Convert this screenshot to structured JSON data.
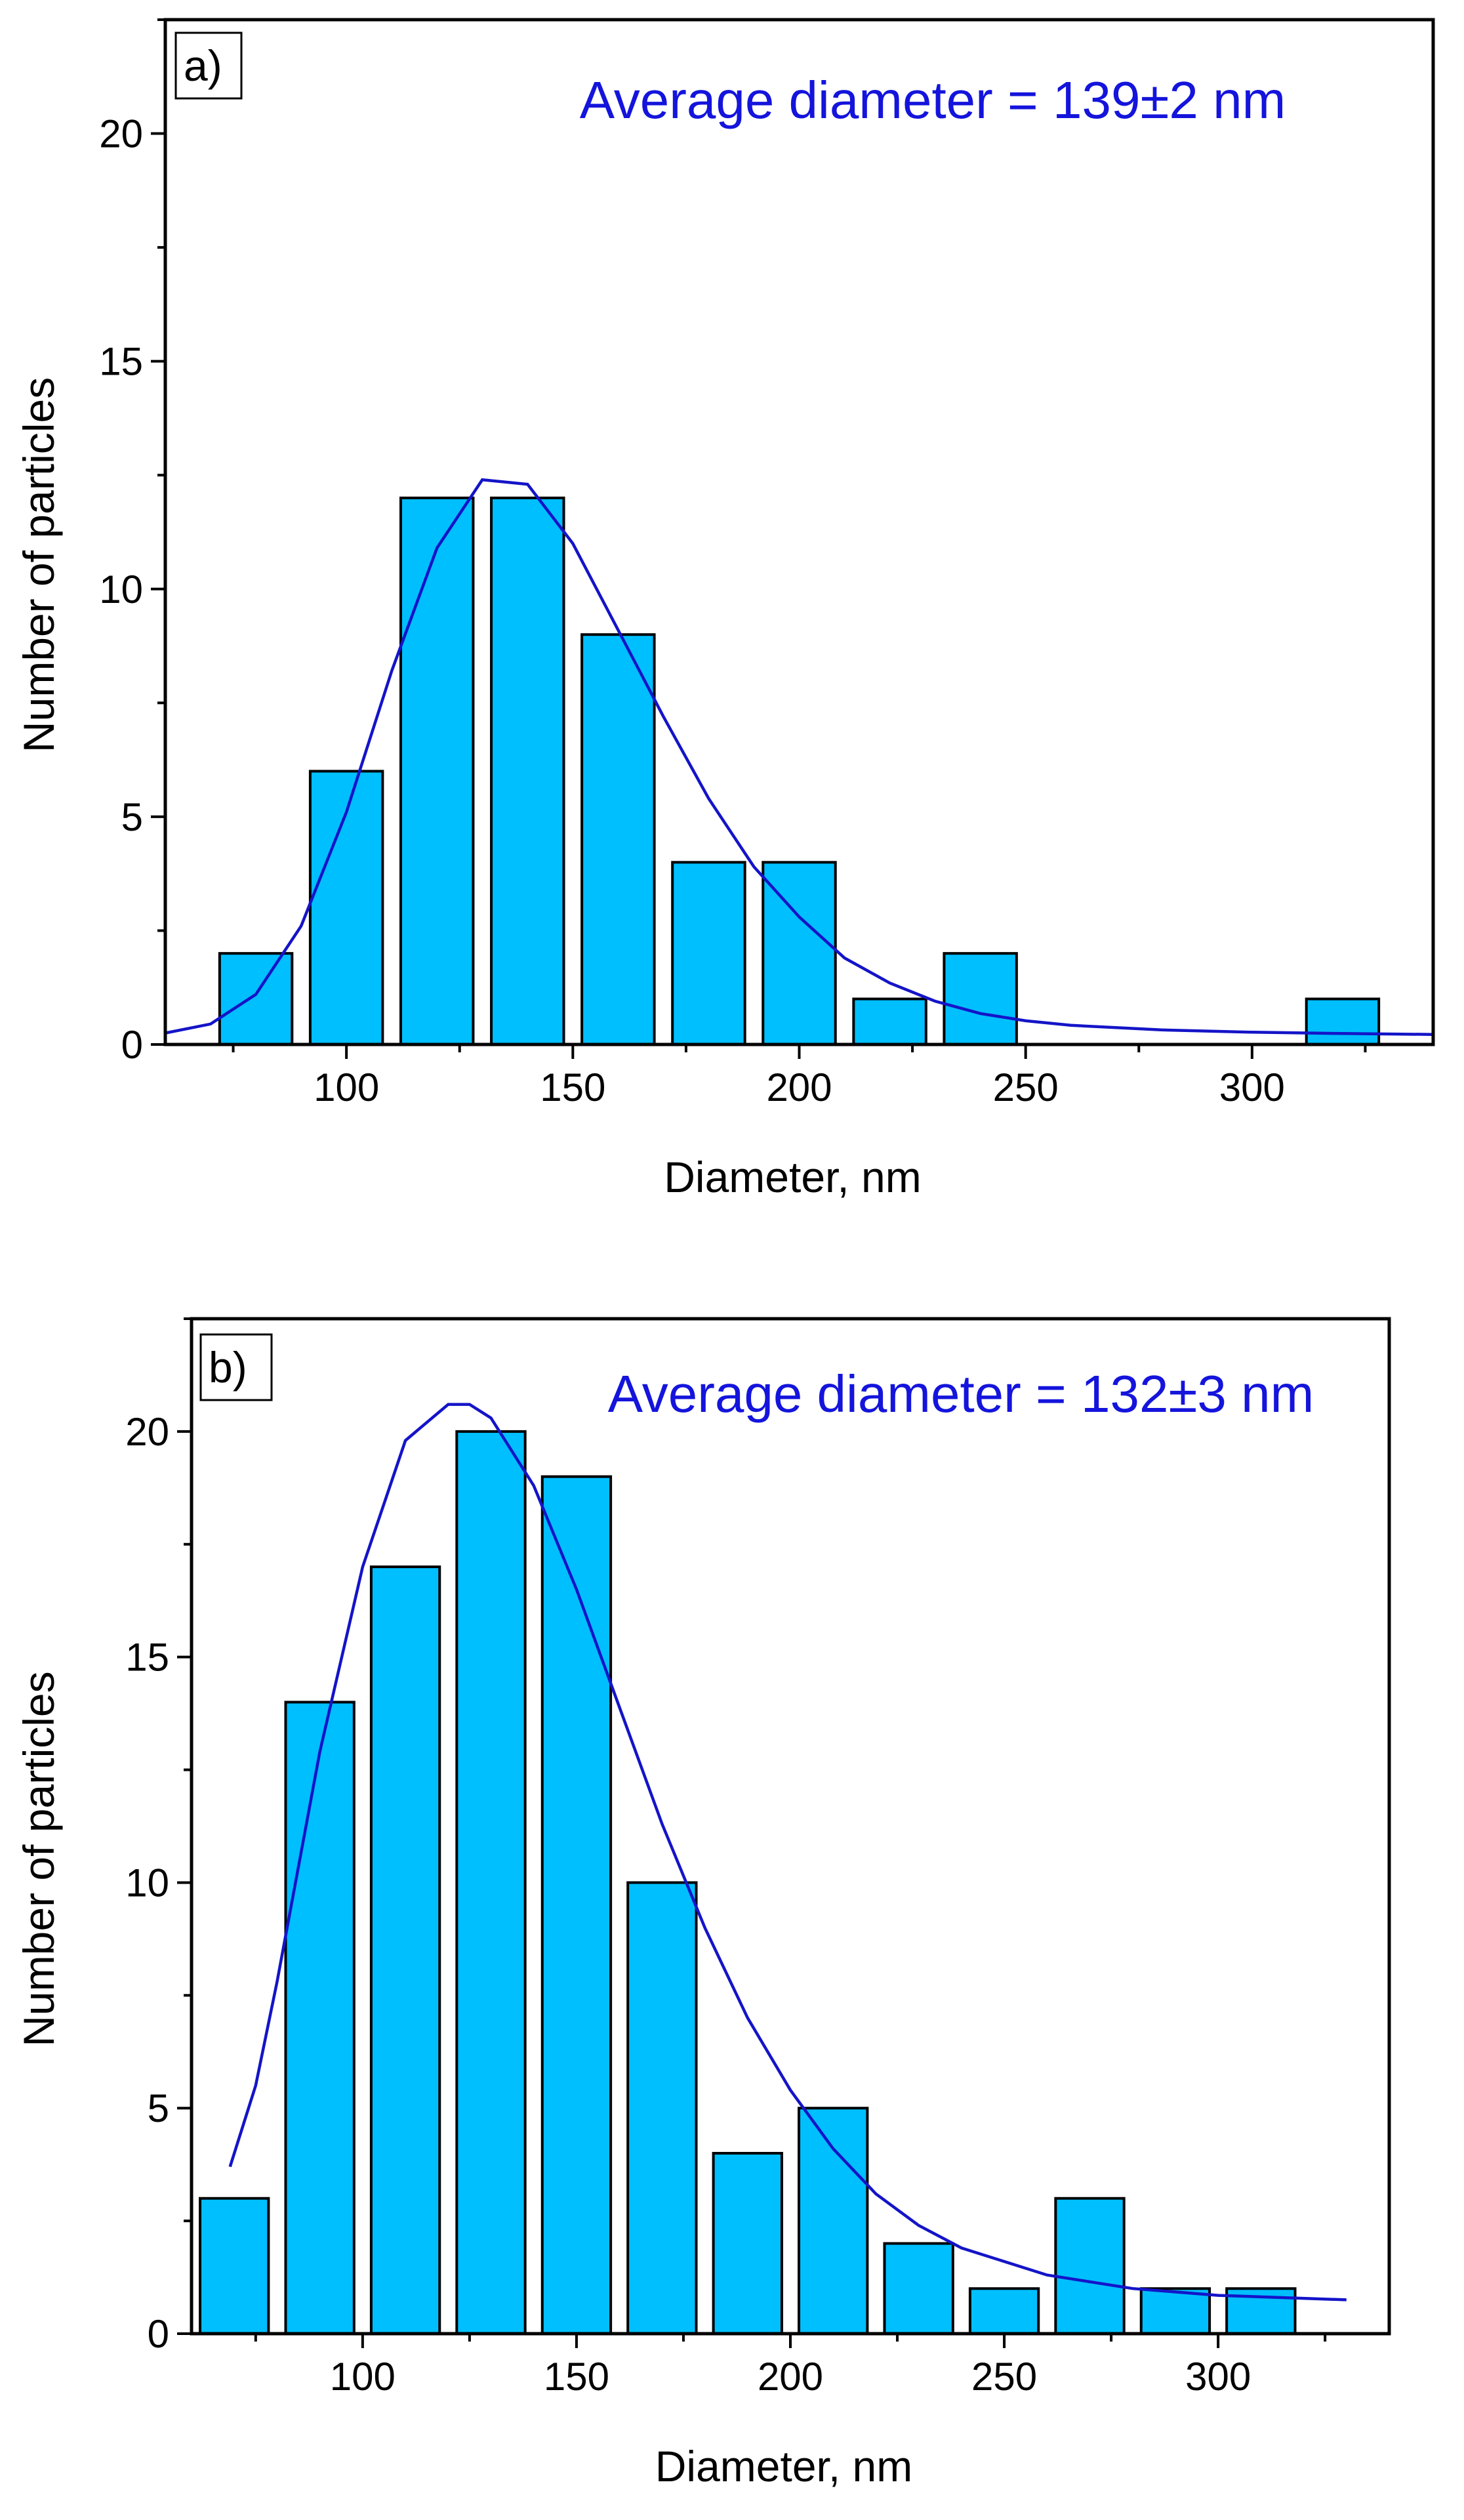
{
  "figure": {
    "panels_count": 2
  },
  "chart_data": [
    {
      "type": "bar",
      "panel_label": "a)",
      "annotation": "Average diameter = 139±2 nm",
      "xlabel": "Diameter, nm",
      "ylabel": "Number of particles",
      "xlim": [
        60,
        340
      ],
      "ylim": [
        0,
        22.5
      ],
      "xticks": [
        100,
        150,
        200,
        250,
        300
      ],
      "yticks": [
        0,
        5,
        10,
        15,
        20
      ],
      "bin_width": 20,
      "bar_fraction": 0.8,
      "bins": [
        {
          "center": 80,
          "count": 2
        },
        {
          "center": 100,
          "count": 6
        },
        {
          "center": 120,
          "count": 12
        },
        {
          "center": 140,
          "count": 12
        },
        {
          "center": 160,
          "count": 9
        },
        {
          "center": 180,
          "count": 4
        },
        {
          "center": 200,
          "count": 4
        },
        {
          "center": 220,
          "count": 1
        },
        {
          "center": 240,
          "count": 2
        },
        {
          "center": 320,
          "count": 1
        }
      ],
      "fit": {
        "type": "lognormal",
        "x": [
          60,
          70,
          80,
          90,
          100,
          110,
          120,
          130,
          140,
          150,
          160,
          170,
          180,
          190,
          200,
          210,
          220,
          230,
          240,
          250,
          260,
          280,
          300,
          320,
          340
        ],
        "y": [
          0.25,
          0.45,
          1.1,
          2.6,
          5.1,
          8.2,
          10.9,
          12.4,
          12.3,
          11.0,
          9.1,
          7.2,
          5.4,
          3.9,
          2.8,
          1.9,
          1.35,
          0.95,
          0.68,
          0.52,
          0.42,
          0.32,
          0.27,
          0.24,
          0.22
        ]
      },
      "colors": {
        "bar": "#00bfff",
        "fit": "#1414c8",
        "annotation": "#1414dc"
      }
    },
    {
      "type": "bar",
      "panel_label": "b)",
      "annotation": "Average diameter = 132±3 nm",
      "xlabel": "Diameter, nm",
      "ylabel": "Number of particles",
      "xlim": [
        60,
        340
      ],
      "ylim": [
        0,
        22.5
      ],
      "xticks": [
        100,
        150,
        200,
        250,
        300
      ],
      "yticks": [
        0,
        5,
        10,
        15,
        20
      ],
      "bin_width": 20,
      "bar_fraction": 0.8,
      "bins": [
        {
          "center": 70,
          "count": 3
        },
        {
          "center": 90,
          "count": 14
        },
        {
          "center": 110,
          "count": 17
        },
        {
          "center": 130,
          "count": 20
        },
        {
          "center": 150,
          "count": 19
        },
        {
          "center": 170,
          "count": 10
        },
        {
          "center": 190,
          "count": 4
        },
        {
          "center": 210,
          "count": 5
        },
        {
          "center": 230,
          "count": 2
        },
        {
          "center": 250,
          "count": 1
        },
        {
          "center": 270,
          "count": 3
        },
        {
          "center": 290,
          "count": 1
        },
        {
          "center": 310,
          "count": 1
        }
      ],
      "fit": {
        "type": "lognormal",
        "x": [
          69,
          75,
          80,
          90,
          100,
          110,
          120,
          125,
          130,
          140,
          150,
          160,
          170,
          180,
          190,
          200,
          210,
          220,
          230,
          240,
          260,
          280,
          300,
          330
        ],
        "y": [
          3.7,
          5.5,
          7.8,
          12.9,
          17.0,
          19.8,
          20.6,
          20.6,
          20.3,
          18.8,
          16.5,
          13.9,
          11.3,
          9.0,
          7.0,
          5.4,
          4.1,
          3.1,
          2.4,
          1.9,
          1.3,
          1.0,
          0.85,
          0.75
        ]
      },
      "colors": {
        "bar": "#00bfff",
        "fit": "#1414c8",
        "annotation": "#1414dc"
      }
    }
  ]
}
